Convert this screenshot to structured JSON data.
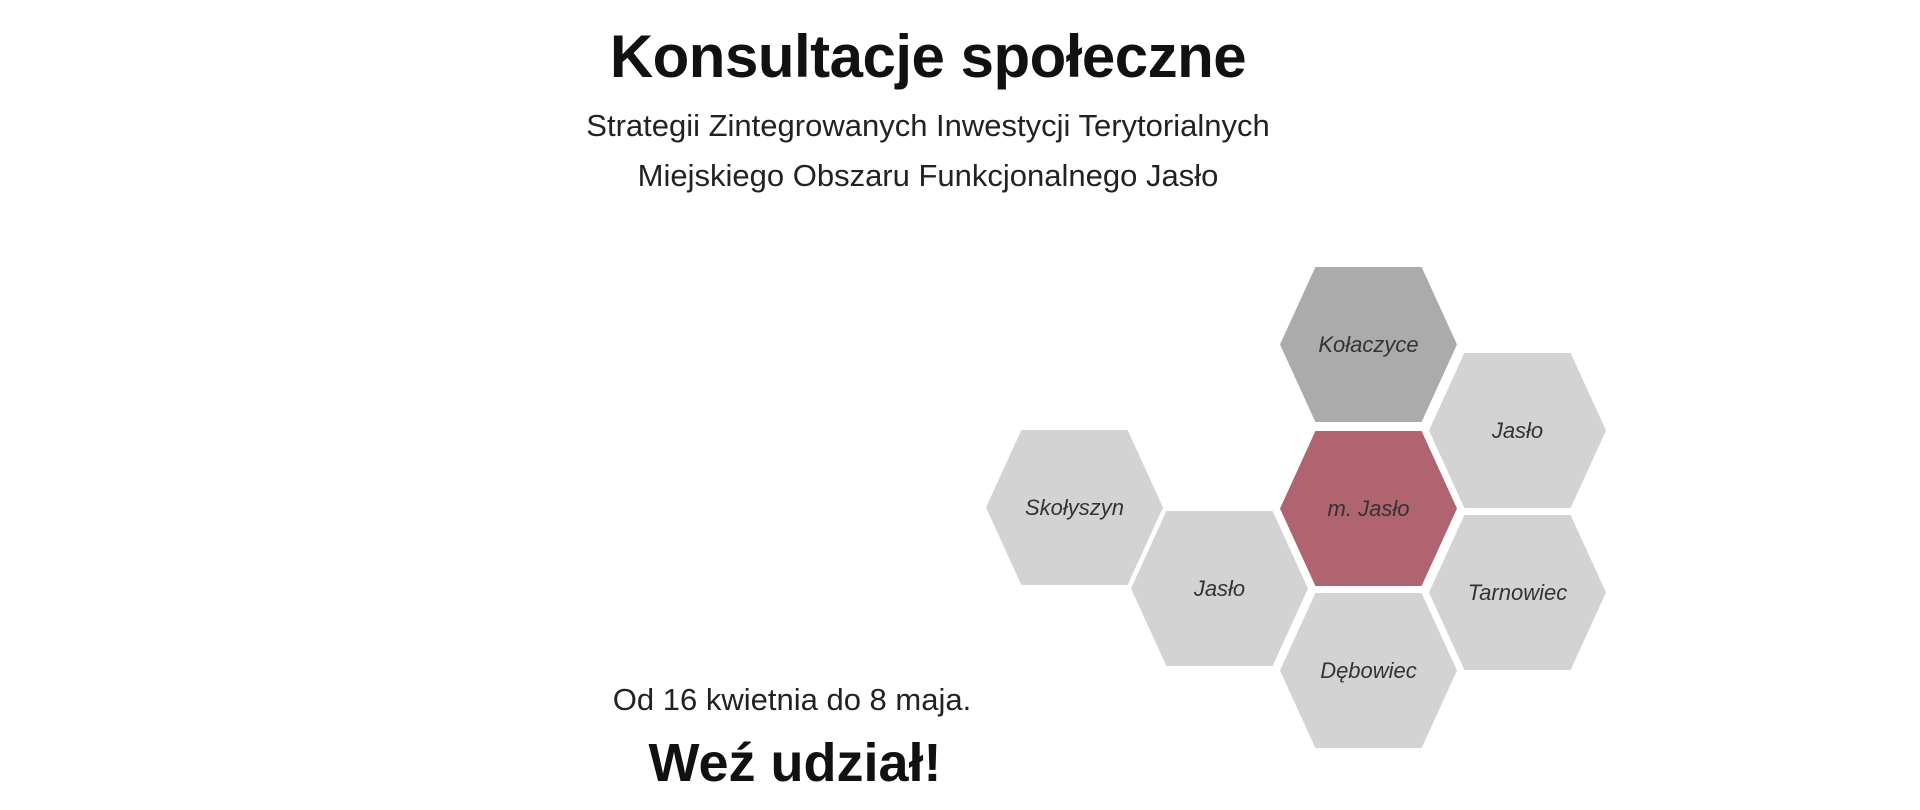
{
  "header": {
    "title": "Konsultacje społeczne",
    "subtitle_line1": "Strategii Zintegrowanych Inwestycji Terytorialnych",
    "subtitle_line2": "Miejskiego Obszaru Funkcjonalnego Jasło"
  },
  "footer": {
    "dates": "Od 16 kwietnia do 8 maja.",
    "cta": "Weź udział!"
  },
  "colors": {
    "hex_default": "#d4d3d4",
    "hex_dark": "#ababab",
    "hex_accent": "#b0646f"
  },
  "hex_map": [
    {
      "label": "Kołaczyce",
      "fill": "#ababab"
    },
    {
      "label": "Jasło",
      "fill": "#d4d3d4"
    },
    {
      "label": "m. Jasło",
      "fill": "#b0646f"
    },
    {
      "label": "Tarnowiec",
      "fill": "#d4d3d4"
    },
    {
      "label": "Dębowiec",
      "fill": "#d4d3d4"
    },
    {
      "label": "Jasło",
      "fill": "#d4d3d4"
    },
    {
      "label": "Skołyszyn",
      "fill": "#d4d3d4"
    }
  ]
}
